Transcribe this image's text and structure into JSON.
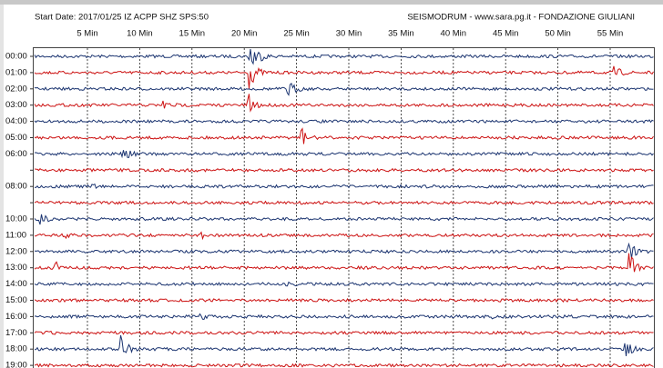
{
  "header": {
    "left": "Start Date: 2017/01/25 IZ ACPP SHZ SPS:50",
    "right": "SEISMODRUM - www.sara.pg.it - FONDAZIONE GIULIANI"
  },
  "minutes": [
    "5 Min",
    "10 Min",
    "15 Min",
    "20 Min",
    "25 Min",
    "30 Min",
    "35 Min",
    "40 Min",
    "45 Min",
    "50 Min",
    "55 Min"
  ],
  "hours": [
    "00:00",
    "01:00",
    "02:00",
    "03:00",
    "04:00",
    "05:00",
    "06:00",
    null,
    "08:00",
    null,
    "10:00",
    "11:00",
    "12:00",
    "13:00",
    "14:00",
    "15:00",
    "16:00",
    "17:00",
    "18:00",
    "19:00"
  ]
}
